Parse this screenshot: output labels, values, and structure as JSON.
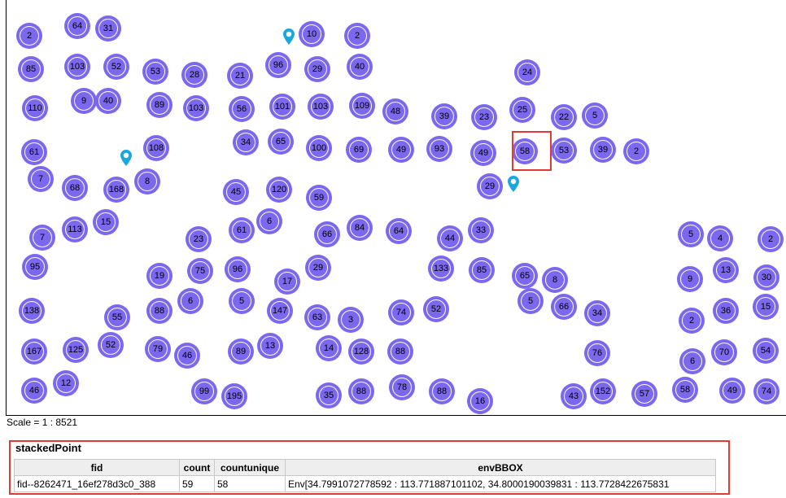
{
  "map": {
    "clusters": [
      "2",
      "64",
      "31",
      "10",
      "2",
      "85",
      "103",
      "52",
      "53",
      "28",
      "21",
      "96",
      "29",
      "40",
      "24",
      "110",
      "9",
      "40",
      "89",
      "103",
      "56",
      "101",
      "103",
      "109",
      "48",
      "39",
      "23",
      "25",
      "22",
      "5",
      "61",
      "108",
      "34",
      "65",
      "100",
      "69",
      "49",
      "93",
      "49",
      "58",
      "53",
      "39",
      "2",
      "7",
      "68",
      "168",
      "8",
      "45",
      "120",
      "59",
      "29",
      "113",
      "15",
      "61",
      "6",
      "66",
      "84",
      "64",
      "44",
      "33",
      "5",
      "4",
      "2",
      "7",
      "23",
      "95",
      "19",
      "75",
      "96",
      "29",
      "17",
      "133",
      "85",
      "65",
      "8",
      "13",
      "9",
      "30",
      "6",
      "5",
      "138",
      "55",
      "88",
      "147",
      "63",
      "3",
      "74",
      "52",
      "5",
      "66",
      "34",
      "2",
      "36",
      "15",
      "167",
      "125",
      "52",
      "79",
      "46",
      "89",
      "13",
      "14",
      "128",
      "88",
      "76",
      "6",
      "70",
      "54",
      "46",
      "12",
      "99",
      "195",
      "35",
      "88",
      "78",
      "88",
      "16",
      "43",
      "152",
      "57",
      "58",
      "49",
      "74"
    ],
    "cluster_color": "#7b68ee",
    "marker_icon": "map-pin-icon",
    "marker_color": "#1aa7e0",
    "selected_cluster": "58",
    "highlight_color": "#e53935"
  },
  "scale": {
    "label": "Scale = 1 : 8521"
  },
  "feature_info": {
    "title": "stackedPoint",
    "columns": [
      "fid",
      "count",
      "countunique",
      "envBBOX"
    ],
    "rows": [
      [
        "fid--8262471_16ef278d3c0_388",
        "59",
        "58",
        "Env[34.7991072778592 : 113.771887101102, 34.8000190039831 : 113.7728422675831"
      ]
    ]
  }
}
